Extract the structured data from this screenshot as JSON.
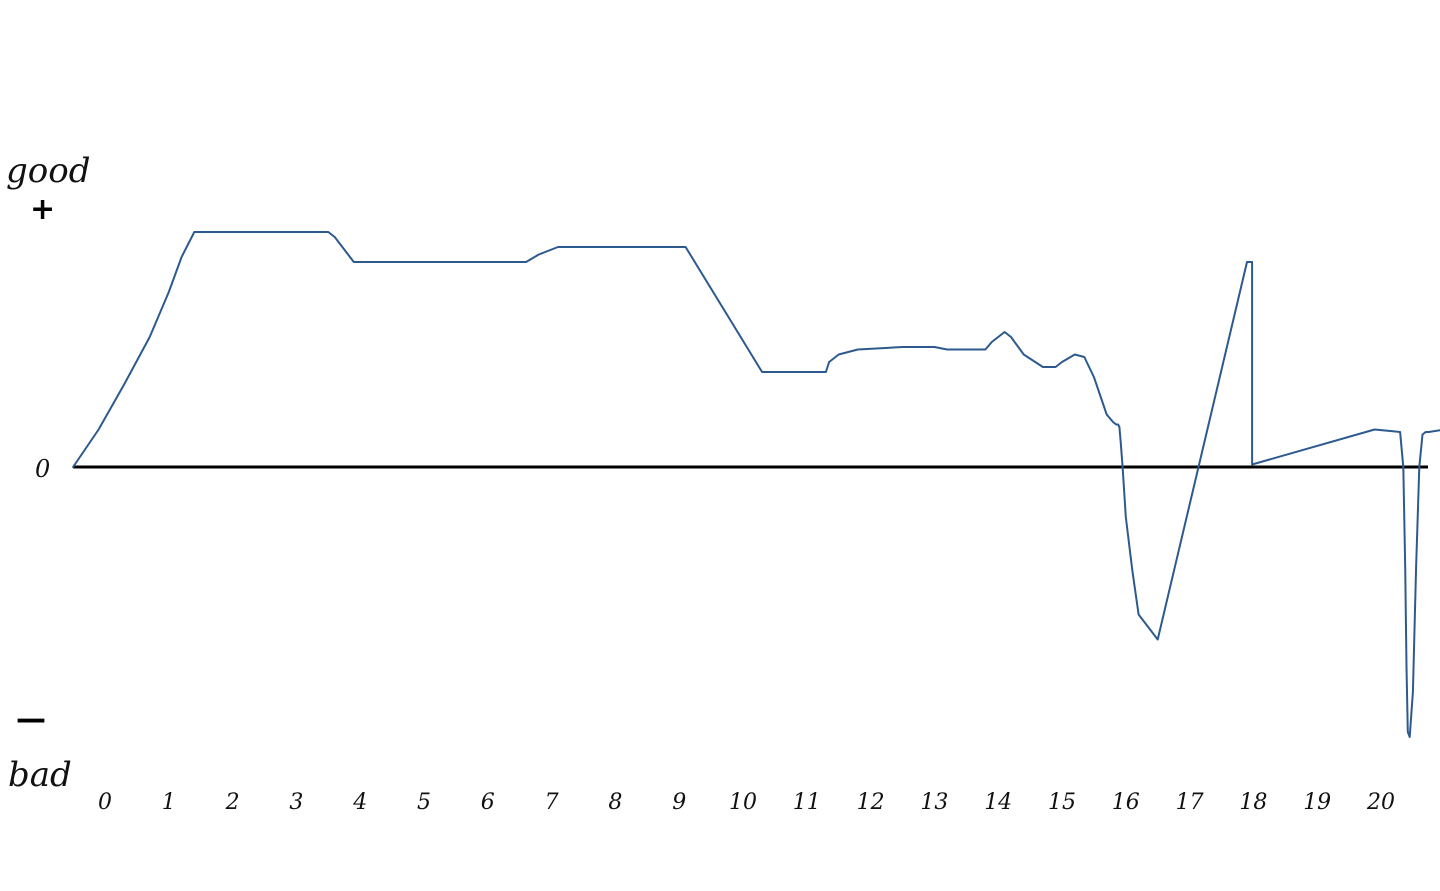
{
  "chart_data": {
    "type": "line",
    "title": "",
    "xlabel": "",
    "ylabel": "",
    "y_top_label": "good",
    "y_top_sign": "+",
    "y_zero_label": "0",
    "y_bottom_sign": "—",
    "y_bottom_label": "bad",
    "x_ticks": [
      "0",
      "1",
      "2",
      "3",
      "4",
      "5",
      "6",
      "7",
      "8",
      "9",
      "10",
      "11",
      "12",
      "13",
      "14",
      "15",
      "16",
      "17",
      "18",
      "19",
      "20"
    ],
    "xlim": [
      -0.5,
      21.0
    ],
    "ylim": [
      -1.0,
      1.0
    ],
    "grid": false,
    "legend": "none",
    "line_color": "#2d5a8e",
    "axis_color": "#000000",
    "series": [
      {
        "x": [
          -0.5,
          -0.1,
          0.3,
          0.7,
          1.0,
          1.2,
          1.4,
          3.5,
          3.6,
          3.9,
          4.2,
          6.6,
          6.8,
          7.0,
          7.1,
          9.1,
          10.3,
          11.3,
          11.35,
          11.5,
          11.8,
          12.5,
          13.0,
          13.2,
          13.6,
          13.8,
          13.9,
          14.1,
          14.2,
          14.4,
          14.7,
          14.9,
          15.0,
          15.2,
          15.35,
          15.5,
          15.7,
          15.8,
          15.85,
          15.88,
          15.9,
          15.92,
          15.95,
          16.0,
          16.1,
          16.2,
          16.5,
          17.9,
          17.98,
          17.98,
          19.9,
          20.3,
          20.35,
          20.38,
          20.4,
          20.42,
          20.45,
          20.5,
          20.55,
          20.6,
          20.65,
          20.7,
          20.75,
          21.0
        ],
        "y": [
          0.0,
          0.15,
          0.33,
          0.52,
          0.7,
          0.84,
          0.94,
          0.94,
          0.92,
          0.82,
          0.82,
          0.82,
          0.85,
          0.87,
          0.88,
          0.88,
          0.38,
          0.38,
          0.42,
          0.45,
          0.47,
          0.48,
          0.48,
          0.47,
          0.47,
          0.47,
          0.5,
          0.54,
          0.52,
          0.45,
          0.4,
          0.4,
          0.42,
          0.45,
          0.44,
          0.36,
          0.21,
          0.18,
          0.17,
          0.17,
          0.16,
          0.1,
          0.0,
          -0.2,
          -0.41,
          -0.59,
          -0.69,
          0.82,
          0.82,
          0.01,
          0.15,
          0.14,
          0.0,
          -0.4,
          -0.8,
          -1.06,
          -1.08,
          -0.9,
          -0.4,
          0.0,
          0.13,
          0.14,
          0.14,
          0.15
        ]
      }
    ]
  }
}
